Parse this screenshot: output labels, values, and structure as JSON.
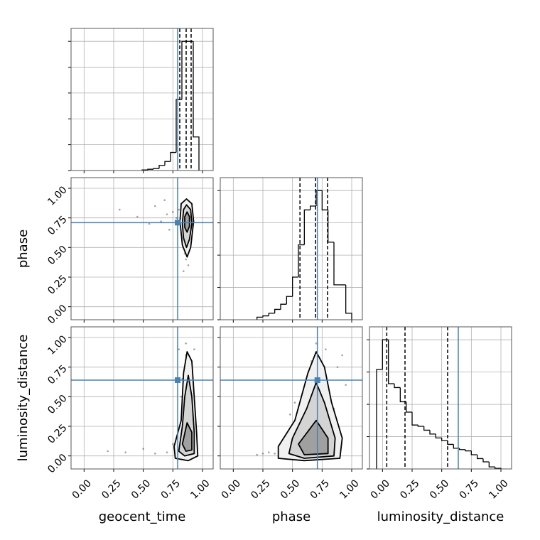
{
  "chart_data": {
    "type": "corner",
    "parameters": [
      "geocent_time",
      "phase",
      "luminosity_distance"
    ],
    "lim": [
      -0.11,
      1.09
    ],
    "ticks": [
      {
        "value": 0,
        "label": "0.00"
      },
      {
        "value": 0.25,
        "label": "0.25"
      },
      {
        "value": 0.5,
        "label": "0.50"
      },
      {
        "value": 0.75,
        "label": "0.75"
      },
      {
        "value": 1,
        "label": "1.00"
      }
    ],
    "grid": true,
    "truths": [
      0.79,
      0.71,
      0.64
    ],
    "truth_color": "#4682b4",
    "line_color": "#000000",
    "point_color": "#333333",
    "contour_fills": [
      "#f0f0f0",
      "#d4d4d4",
      "#a0a0a0"
    ],
    "histograms": [
      {
        "bins": [
          0.49,
          0.538,
          0.586,
          0.634,
          0.682,
          0.73,
          0.778,
          0.826,
          0.874,
          0.922,
          0.97
        ],
        "values": [
          0.005,
          0.01,
          0.015,
          0.04,
          0.07,
          0.14,
          0.55,
          1.0,
          1.0,
          0.26
        ],
        "quantiles": [
          0.808,
          0.862,
          0.904
        ],
        "ylim": [
          0,
          1.1
        ],
        "yticks": [
          0,
          0.2,
          0.4,
          0.6,
          0.8,
          1.0
        ]
      },
      {
        "bins": [
          0.2,
          0.25,
          0.3,
          0.35,
          0.4,
          0.45,
          0.5,
          0.55,
          0.6,
          0.65,
          0.7,
          0.75,
          0.8,
          0.85,
          0.9,
          0.95,
          1.0
        ],
        "values": [
          0.02,
          0.03,
          0.05,
          0.08,
          0.12,
          0.18,
          0.33,
          0.58,
          0.85,
          0.88,
          1.0,
          0.85,
          0.6,
          0.27,
          0.27,
          0.05
        ],
        "quantiles": [
          0.563,
          0.695,
          0.796
        ],
        "ylim": [
          0,
          1.1
        ],
        "yticks": [
          0,
          0.25,
          0.5,
          0.75,
          1.0
        ]
      },
      {
        "bins": [
          -0.05,
          0,
          0.05,
          0.1,
          0.15,
          0.2,
          0.25,
          0.3,
          0.35,
          0.4,
          0.45,
          0.5,
          0.55,
          0.6,
          0.65,
          0.7,
          0.75,
          0.8,
          0.85,
          0.9,
          0.95,
          1.0
        ],
        "values": [
          0.77,
          1.0,
          0.66,
          0.63,
          0.52,
          0.44,
          0.34,
          0.33,
          0.3,
          0.27,
          0.24,
          0.22,
          0.19,
          0.16,
          0.15,
          0.14,
          0.11,
          0.08,
          0.055,
          0.016,
          0.005
        ],
        "quantiles": [
          0.036,
          0.19,
          0.55
        ],
        "ylim": [
          0,
          1.1
        ],
        "yticks": [
          0,
          0.25,
          0.5,
          0.75,
          1.0
        ]
      }
    ],
    "pairs": [
      [
        {
          "points": {
            "x": [
              0.85,
              0.87,
              0.88,
              0.84,
              0.86,
              0.9,
              0.83,
              0.82,
              0.89,
              0.86,
              0.85,
              0.87,
              0.91,
              0.8,
              0.78,
              0.75,
              0.7,
              0.65,
              0.6,
              0.55,
              0.45,
              0.3,
              0.86,
              0.88,
              0.84,
              0.85,
              0.9,
              0.87,
              0.72,
              0.68
            ],
            "y": [
              0.7,
              0.75,
              0.65,
              0.8,
              0.6,
              0.72,
              0.68,
              0.85,
              0.55,
              0.5,
              0.45,
              0.9,
              0.78,
              0.82,
              0.75,
              0.8,
              0.78,
              0.72,
              0.85,
              0.7,
              0.76,
              0.82,
              0.4,
              0.35,
              0.3,
              0.62,
              0.58,
              0.66,
              0.65,
              0.9
            ]
          },
          "contours": [
            {
              "x": [
                0.865,
                0.91,
                0.925,
                0.9,
                0.87,
                0.83,
                0.81,
                0.82
              ],
              "y": [
                0.91,
                0.87,
                0.72,
                0.5,
                0.42,
                0.52,
                0.72,
                0.87
              ]
            },
            {
              "x": [
                0.865,
                0.9,
                0.91,
                0.89,
                0.865,
                0.84,
                0.83,
                0.84
              ],
              "y": [
                0.86,
                0.82,
                0.7,
                0.57,
                0.5,
                0.58,
                0.7,
                0.82
              ]
            },
            {
              "x": [
                0.87,
                0.89,
                0.89,
                0.87,
                0.85,
                0.85
              ],
              "y": [
                0.8,
                0.76,
                0.68,
                0.63,
                0.67,
                0.76
              ]
            }
          ]
        }
      ],
      [
        {
          "points": {
            "x": [
              0.85,
              0.87,
              0.9,
              0.88,
              0.92,
              0.84,
              0.86,
              0.89,
              0.93,
              0.8,
              0.78,
              0.82,
              0.88,
              0.86,
              0.9,
              0.7,
              0.6,
              0.5,
              0.35,
              0.2,
              0.87,
              0.91,
              0.85,
              0.89,
              0.83,
              0.75,
              0.8,
              0.94,
              0.86,
              0.88
            ],
            "y": [
              0.05,
              0.1,
              0.2,
              0.3,
              0.15,
              0.4,
              0.6,
              0.8,
              0.9,
              0.02,
              0.05,
              0.5,
              0.7,
              0.85,
              0.45,
              0.03,
              0.02,
              0.06,
              0.03,
              0.04,
              0.25,
              0.35,
              0.12,
              0.55,
              0.65,
              0.1,
              0.9,
              0.08,
              0.95,
              0.02
            ]
          },
          "contours": [
            {
              "x": [
                0.87,
                0.91,
                0.93,
                0.95,
                0.96,
                0.88,
                0.77,
                0.76,
                0.82,
                0.84
              ],
              "y": [
                0.88,
                0.8,
                0.5,
                0.2,
                0.0,
                -0.04,
                -0.02,
                0.08,
                0.3,
                0.7
              ]
            },
            {
              "x": [
                0.88,
                0.91,
                0.93,
                0.93,
                0.85,
                0.8,
                0.83,
                0.85
              ],
              "y": [
                0.68,
                0.5,
                0.2,
                0.02,
                0.0,
                0.04,
                0.25,
                0.5
              ]
            },
            {
              "x": [
                0.87,
                0.91,
                0.91,
                0.86,
                0.83
              ],
              "y": [
                0.28,
                0.2,
                0.05,
                0.04,
                0.1
              ]
            }
          ]
        },
        {
          "points": {
            "x": [
              0.7,
              0.65,
              0.75,
              0.8,
              0.6,
              0.55,
              0.5,
              0.45,
              0.4,
              0.35,
              0.3,
              0.25,
              0.85,
              0.9,
              0.95,
              0.72,
              0.68,
              0.78,
              0.62,
              0.58,
              0.88,
              0.92,
              0.7,
              0.66,
              0.74,
              0.52,
              0.48,
              0.82,
              0.2,
              0.76
            ],
            "y": [
              0.05,
              0.1,
              0.2,
              0.15,
              0.3,
              0.05,
              0.2,
              0.1,
              0.05,
              0.02,
              0.03,
              0.02,
              0.4,
              0.2,
              0.6,
              0.7,
              0.5,
              0.9,
              0.6,
              0.4,
              0.75,
              0.85,
              0.95,
              0.8,
              0.55,
              0.45,
              0.35,
              0.3,
              0.01,
              0.1
            ]
          },
          "contours": [
            {
              "x": [
                0.7,
                0.77,
                0.83,
                0.92,
                0.9,
                0.6,
                0.38,
                0.38,
                0.52,
                0.63
              ],
              "y": [
                0.88,
                0.75,
                0.45,
                0.15,
                -0.02,
                -0.04,
                -0.02,
                0.08,
                0.3,
                0.7
              ]
            },
            {
              "x": [
                0.7,
                0.77,
                0.86,
                0.85,
                0.6,
                0.47,
                0.5,
                0.62
              ],
              "y": [
                0.62,
                0.45,
                0.15,
                0.0,
                -0.02,
                0.02,
                0.15,
                0.4
              ]
            },
            {
              "x": [
                0.7,
                0.8,
                0.8,
                0.6,
                0.55
              ],
              "y": [
                0.3,
                0.15,
                0.02,
                0.01,
                0.1
              ]
            }
          ]
        }
      ]
    ]
  }
}
